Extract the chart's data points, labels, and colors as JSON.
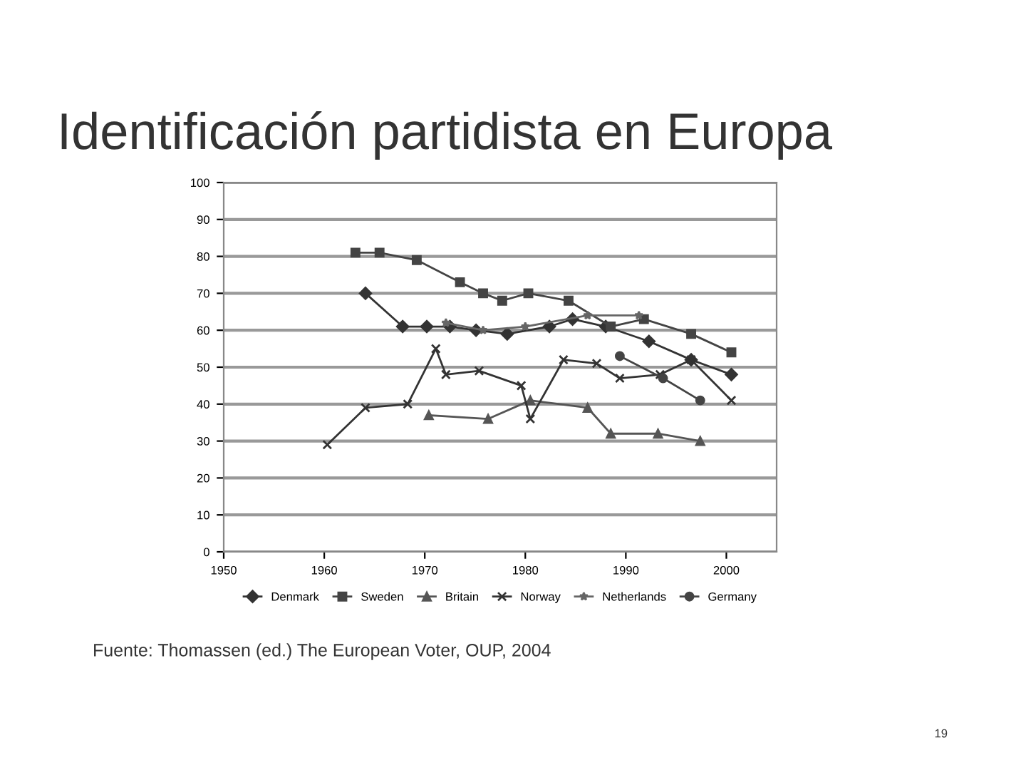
{
  "chart_data": {
    "type": "line",
    "title": "Identificación partidista en Europa",
    "xlim": [
      1950,
      2005
    ],
    "xticks": [
      1950,
      1960,
      1970,
      1980,
      1990,
      2000
    ],
    "ylim": [
      0,
      100
    ],
    "yticks": [
      0,
      10,
      20,
      30,
      40,
      50,
      60,
      70,
      80,
      90,
      100
    ],
    "grid": "y",
    "legend": "bottom",
    "series": [
      {
        "name": "Denmark",
        "color": "#333333",
        "marker": "diamond",
        "x": [
          1964.1,
          1967.8,
          1970.2,
          1972.5,
          1975.1,
          1978.2,
          1982.4,
          1984.7,
          1988.0,
          1992.3,
          1996.5,
          2000.5
        ],
        "values": [
          70,
          61,
          61,
          61,
          60,
          59,
          61,
          63,
          61,
          57,
          52,
          48
        ]
      },
      {
        "name": "Sweden",
        "color": "#444444",
        "marker": "square",
        "x": [
          1963.1,
          1965.5,
          1969.2,
          1973.5,
          1975.8,
          1977.7,
          1980.3,
          1984.3,
          1988.5,
          1991.8,
          1996.5,
          2000.5
        ],
        "values": [
          81,
          81,
          79,
          73,
          70,
          68,
          70,
          68,
          61,
          63,
          59,
          54
        ]
      },
      {
        "name": "Britain",
        "color": "#555555",
        "marker": "triangle",
        "x": [
          1970.4,
          1976.3,
          1980.5,
          1986.2,
          1988.5,
          1993.2,
          1997.4
        ],
        "values": [
          37,
          36,
          41,
          39,
          32,
          32,
          30
        ]
      },
      {
        "name": "Norway",
        "color": "#333333",
        "marker": "cross",
        "x": [
          1960.3,
          1964.1,
          1968.3,
          1971.1,
          1972.1,
          1975.4,
          1979.6,
          1980.5,
          1983.8,
          1987.1,
          1989.4,
          1993.4,
          1996.5,
          2000.5
        ],
        "values": [
          29,
          39,
          40,
          55,
          48,
          49,
          45,
          36,
          52,
          51,
          47,
          48,
          52,
          41
        ]
      },
      {
        "name": "Netherlands",
        "color": "#666666",
        "marker": "star",
        "x": [
          1972.1,
          1975.8,
          1980.0,
          1986.2,
          1991.3
        ],
        "values": [
          62,
          60,
          61,
          64,
          64
        ]
      },
      {
        "name": "Germany",
        "color": "#444444",
        "marker": "circle",
        "x": [
          1989.4,
          1993.7,
          1997.4
        ],
        "values": [
          53,
          47,
          41
        ]
      }
    ],
    "annotations": [
      "Fuente: Thomassen (ed.) The European Voter, OUP, 2004",
      "19"
    ]
  }
}
